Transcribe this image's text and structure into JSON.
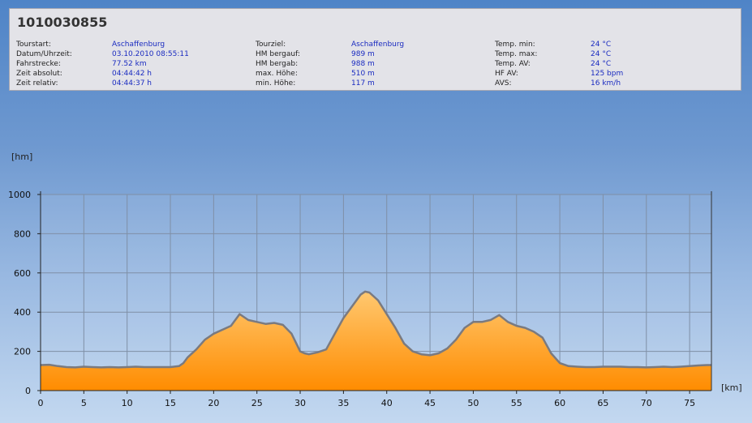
{
  "header": {
    "title": "1010030855"
  },
  "info": {
    "col1": [
      {
        "label": "Tourstart:",
        "value": "Aschaffenburg"
      },
      {
        "label": "Datum/Uhrzeit:",
        "value": "03.10.2010 08:55:11"
      },
      {
        "label": "Fahrstrecke:",
        "value": "77.52 km"
      },
      {
        "label": "Zeit absolut:",
        "value": "04:44:42 h"
      },
      {
        "label": "Zeit relativ:",
        "value": "04:44:37 h"
      }
    ],
    "col2": [
      {
        "label": "Tourziel:",
        "value": "Aschaffenburg"
      },
      {
        "label": "HM bergauf:",
        "value": "989 m"
      },
      {
        "label": "HM bergab:",
        "value": "988 m"
      },
      {
        "label": "max. Höhe:",
        "value": "510 m"
      },
      {
        "label": "min. Höhe:",
        "value": "117 m"
      }
    ],
    "col3": [
      {
        "label": "Temp. min:",
        "value": "24 °C"
      },
      {
        "label": "Temp. max:",
        "value": "24 °C"
      },
      {
        "label": "Temp. AV:",
        "value": "24 °C"
      },
      {
        "label": "HF AV:",
        "value": "125 bpm"
      },
      {
        "label": "AVS:",
        "value": "16 km/h"
      }
    ]
  },
  "chart_data": {
    "type": "area",
    "title": "",
    "xlabel": "[km]",
    "ylabel": "[hm]",
    "xlim": [
      0,
      77.52
    ],
    "ylim": [
      0,
      1000
    ],
    "xticks": [
      0,
      5,
      10,
      15,
      20,
      25,
      30,
      35,
      40,
      45,
      50,
      55,
      60,
      65,
      70,
      75
    ],
    "yticks": [
      0,
      200,
      400,
      600,
      800,
      1000
    ],
    "grid": true,
    "fill_color_top": "#ffc870",
    "fill_color_bottom": "#ff8c00",
    "line_color": "#7a7a80",
    "series": [
      {
        "x": [
          0,
          1,
          2,
          3,
          4,
          5,
          6,
          7,
          8,
          9,
          10,
          11,
          12,
          13,
          14,
          15,
          16,
          16.5,
          17,
          18,
          19,
          20,
          21,
          22,
          23,
          24,
          25,
          26,
          27,
          28,
          29,
          30,
          30.5,
          31,
          32,
          33,
          34,
          35,
          36,
          37,
          37.5,
          38,
          39,
          40,
          41,
          42,
          43,
          44,
          45,
          46,
          47,
          48,
          49,
          50,
          51,
          52,
          53,
          54,
          55,
          56,
          57,
          58,
          59,
          60,
          61,
          62,
          63,
          64,
          65,
          66,
          67,
          68,
          69,
          70,
          71,
          72,
          73,
          74,
          75,
          76,
          77,
          77.52
        ],
        "y": [
          130,
          132,
          125,
          120,
          118,
          122,
          120,
          118,
          120,
          118,
          120,
          122,
          120,
          120,
          120,
          120,
          125,
          140,
          170,
          210,
          260,
          290,
          310,
          330,
          390,
          360,
          350,
          340,
          345,
          335,
          290,
          200,
          190,
          185,
          195,
          210,
          290,
          370,
          430,
          490,
          505,
          500,
          460,
          390,
          320,
          240,
          200,
          185,
          180,
          190,
          215,
          260,
          320,
          350,
          350,
          360,
          385,
          350,
          330,
          320,
          300,
          270,
          190,
          140,
          125,
          122,
          120,
          120,
          122,
          122,
          122,
          120,
          120,
          118,
          120,
          122,
          120,
          122,
          125,
          128,
          130,
          130
        ]
      }
    ]
  }
}
